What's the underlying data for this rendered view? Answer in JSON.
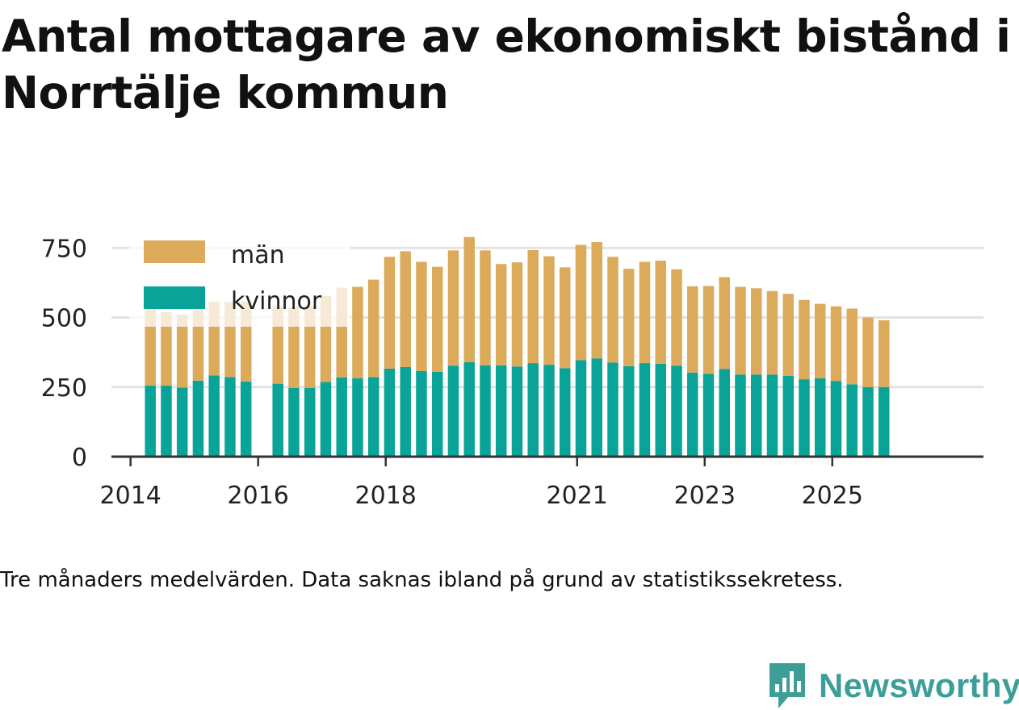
{
  "title": "Antal mottagare av ekonomiskt bistånd i Norrtälje kommun",
  "caption": "Tre månaders medelvärden. Data saknas ibland på grund av statistikssekretess.",
  "brand": "Newsworthy",
  "colors": {
    "man": "#dbab5b",
    "kvinnor": "#0aa398",
    "grid": "#e2e2e2",
    "axis": "#333333",
    "brand": "#3d9e98"
  },
  "chart_data": {
    "type": "bar",
    "stacked": true,
    "title": "Antal mottagare av ekonomiskt bistånd i Norrtälje kommun",
    "xlabel": "",
    "ylabel": "",
    "ylim": [
      0,
      800
    ],
    "y_ticks": [
      0,
      250,
      500,
      750
    ],
    "y_tick_labels": [
      "0",
      "250",
      "500",
      "750"
    ],
    "x_ticks": [
      2014,
      2016,
      2018,
      2021,
      2023,
      2025
    ],
    "x_tick_labels": [
      "2014",
      "2016",
      "2018",
      "2021",
      "2023",
      "2025"
    ],
    "x_domain": [
      2013.7,
      2027.37
    ],
    "legend_position": "top-left",
    "x": [
      2014.31,
      2014.56,
      2014.81,
      2015.06,
      2015.31,
      2015.56,
      2015.81,
      2016.31,
      2016.56,
      2016.81,
      2017.06,
      2017.31,
      2017.56,
      2017.81,
      2018.06,
      2018.31,
      2018.56,
      2018.81,
      2019.06,
      2019.31,
      2019.56,
      2019.81,
      2020.06,
      2020.31,
      2020.56,
      2020.81,
      2021.06,
      2021.31,
      2021.56,
      2021.81,
      2022.06,
      2022.31,
      2022.56,
      2022.81,
      2023.06,
      2023.31,
      2023.56,
      2023.81,
      2024.06,
      2024.31,
      2024.56,
      2024.81,
      2025.06,
      2025.31,
      2025.56,
      2025.81
    ],
    "series": [
      {
        "name": "kvinnor",
        "values": [
          255,
          255,
          248,
          273,
          292,
          286,
          270,
          262,
          247,
          247,
          268,
          285,
          282,
          286,
          316,
          322,
          308,
          305,
          327,
          340,
          328,
          328,
          324,
          336,
          330,
          318,
          347,
          353,
          338,
          325,
          336,
          334,
          327,
          302,
          298,
          315,
          295,
          295,
          295,
          290,
          278,
          282,
          272,
          260,
          250,
          250
        ]
      },
      {
        "name": "män",
        "values": [
          275,
          265,
          262,
          285,
          265,
          270,
          288,
          278,
          290,
          295,
          310,
          322,
          328,
          350,
          402,
          416,
          392,
          377,
          414,
          449,
          413,
          364,
          374,
          406,
          390,
          362,
          414,
          418,
          380,
          350,
          364,
          370,
          346,
          310,
          315,
          330,
          315,
          310,
          300,
          295,
          285,
          267,
          268,
          272,
          250,
          240
        ]
      }
    ],
    "legend_overlap_indices": [
      0,
      1,
      2,
      3,
      4,
      5,
      6,
      7,
      8,
      9
    ]
  }
}
